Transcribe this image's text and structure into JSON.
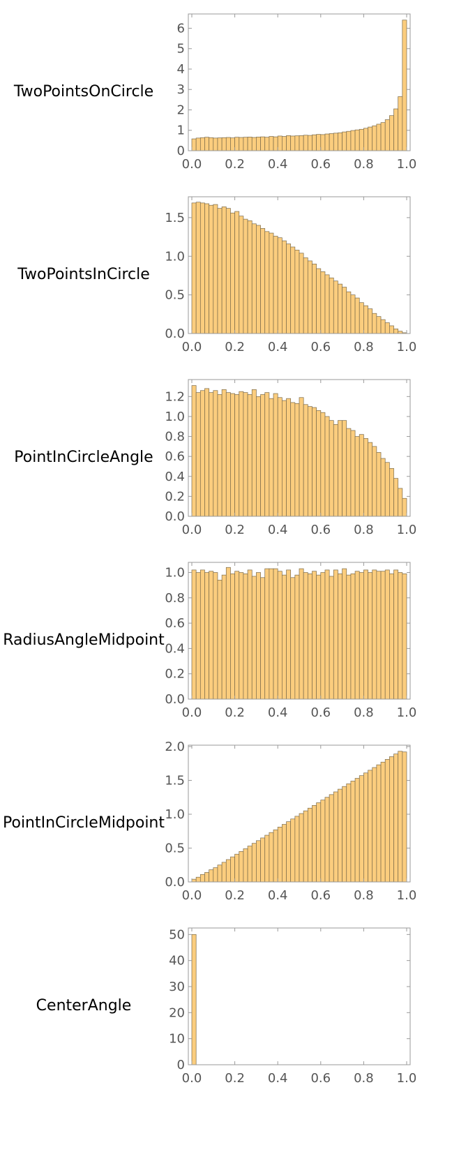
{
  "chart_data": [
    {
      "type": "bar",
      "label": "TwoPointsOnCircle",
      "ylim": [
        0,
        6.7
      ],
      "yticks": [
        "0",
        "1",
        "2",
        "3",
        "4",
        "5",
        "6"
      ],
      "xticks": [
        "0.0",
        "0.2",
        "0.4",
        "0.6",
        "0.8",
        "1.0"
      ],
      "values": [
        0.58,
        0.62,
        0.64,
        0.66,
        0.64,
        0.62,
        0.63,
        0.64,
        0.65,
        0.63,
        0.66,
        0.65,
        0.66,
        0.67,
        0.65,
        0.67,
        0.68,
        0.66,
        0.7,
        0.68,
        0.72,
        0.7,
        0.74,
        0.72,
        0.73,
        0.74,
        0.76,
        0.75,
        0.78,
        0.8,
        0.79,
        0.82,
        0.84,
        0.86,
        0.88,
        0.92,
        0.95,
        0.99,
        1.02,
        1.05,
        1.1,
        1.16,
        1.22,
        1.3,
        1.38,
        1.52,
        1.72,
        2.05,
        2.65,
        6.4
      ]
    },
    {
      "type": "bar",
      "label": "TwoPointsInCircle",
      "ylim": [
        0,
        1.77
      ],
      "yticks": [
        "0.0",
        "0.5",
        "1.0",
        "1.5"
      ],
      "xticks": [
        "0.0",
        "0.2",
        "0.4",
        "0.6",
        "0.8",
        "1.0"
      ],
      "values": [
        1.69,
        1.7,
        1.69,
        1.68,
        1.66,
        1.67,
        1.62,
        1.64,
        1.62,
        1.56,
        1.58,
        1.52,
        1.48,
        1.46,
        1.42,
        1.4,
        1.36,
        1.32,
        1.3,
        1.26,
        1.24,
        1.2,
        1.16,
        1.12,
        1.08,
        1.04,
        0.98,
        0.94,
        0.9,
        0.84,
        0.8,
        0.76,
        0.72,
        0.68,
        0.64,
        0.6,
        0.54,
        0.5,
        0.46,
        0.4,
        0.36,
        0.32,
        0.26,
        0.22,
        0.18,
        0.14,
        0.1,
        0.06,
        0.03,
        0.01
      ]
    },
    {
      "type": "bar",
      "label": "PointInCircleAngle",
      "ylim": [
        0,
        1.37
      ],
      "yticks": [
        "0.0",
        "0.2",
        "0.4",
        "0.6",
        "0.8",
        "1.0",
        "1.2"
      ],
      "xticks": [
        "0.0",
        "0.2",
        "0.4",
        "0.6",
        "0.8",
        "1.0"
      ],
      "values": [
        1.31,
        1.24,
        1.26,
        1.28,
        1.24,
        1.26,
        1.22,
        1.27,
        1.24,
        1.23,
        1.22,
        1.25,
        1.24,
        1.22,
        1.27,
        1.2,
        1.22,
        1.24,
        1.18,
        1.23,
        1.19,
        1.16,
        1.18,
        1.14,
        1.13,
        1.19,
        1.12,
        1.1,
        1.09,
        1.06,
        1.04,
        1.0,
        0.96,
        0.92,
        0.96,
        0.96,
        0.88,
        0.86,
        0.8,
        0.82,
        0.78,
        0.74,
        0.7,
        0.64,
        0.58,
        0.54,
        0.48,
        0.38,
        0.28,
        0.18
      ]
    },
    {
      "type": "bar",
      "label": "RadiusAngleMidpoint",
      "ylim": [
        0,
        1.08
      ],
      "yticks": [
        "0.0",
        "0.2",
        "0.4",
        "0.6",
        "0.8",
        "1.0"
      ],
      "xticks": [
        "0.0",
        "0.2",
        "0.4",
        "0.6",
        "0.8",
        "1.0"
      ],
      "values": [
        1.02,
        1.0,
        1.02,
        1.0,
        1.01,
        1.0,
        0.94,
        0.98,
        1.04,
        0.99,
        1.01,
        1.0,
        0.99,
        1.02,
        0.97,
        1.0,
        0.96,
        1.03,
        1.03,
        1.03,
        1.01,
        0.98,
        1.02,
        0.96,
        0.98,
        1.03,
        1.0,
        0.99,
        1.01,
        0.98,
        1.0,
        1.02,
        0.97,
        1.02,
        0.99,
        1.03,
        0.98,
        0.99,
        1.01,
        1.0,
        1.02,
        1.0,
        1.02,
        1.01,
        1.01,
        1.02,
        0.99,
        1.02,
        1.0,
        0.99
      ]
    },
    {
      "type": "bar",
      "label": "PointInCircleMidpoint",
      "ylim": [
        0,
        2.02
      ],
      "yticks": [
        "0.0",
        "0.5",
        "1.0",
        "1.5",
        "2.0"
      ],
      "xticks": [
        "0.0",
        "0.2",
        "0.4",
        "0.6",
        "0.8",
        "1.0"
      ],
      "values": [
        0.04,
        0.07,
        0.11,
        0.14,
        0.18,
        0.21,
        0.25,
        0.29,
        0.33,
        0.37,
        0.41,
        0.45,
        0.49,
        0.53,
        0.57,
        0.61,
        0.65,
        0.69,
        0.73,
        0.77,
        0.81,
        0.85,
        0.89,
        0.93,
        0.97,
        1.01,
        1.05,
        1.09,
        1.13,
        1.17,
        1.21,
        1.25,
        1.29,
        1.33,
        1.37,
        1.41,
        1.45,
        1.49,
        1.53,
        1.57,
        1.61,
        1.65,
        1.69,
        1.73,
        1.77,
        1.81,
        1.85,
        1.89,
        1.93,
        1.92
      ]
    },
    {
      "type": "bar",
      "label": "CenterAngle",
      "ylim": [
        0,
        52.5
      ],
      "yticks": [
        "0",
        "10",
        "20",
        "30",
        "40",
        "50"
      ],
      "xticks": [
        "0.0",
        "0.2",
        "0.4",
        "0.6",
        "0.8",
        "1.0"
      ],
      "values": [
        50,
        0,
        0,
        0,
        0,
        0,
        0,
        0,
        0,
        0,
        0,
        0,
        0,
        0,
        0,
        0,
        0,
        0,
        0,
        0,
        0,
        0,
        0,
        0,
        0,
        0,
        0,
        0,
        0,
        0,
        0,
        0,
        0,
        0,
        0,
        0,
        0,
        0,
        0,
        0,
        0,
        0,
        0,
        0,
        0,
        0,
        0,
        0,
        0,
        0
      ]
    }
  ],
  "colors": {
    "bar_fill": "#fbcd7e",
    "bar_stroke": "#7a6a4a",
    "frame": "#9a9a9a",
    "tick_text": "#555555"
  }
}
